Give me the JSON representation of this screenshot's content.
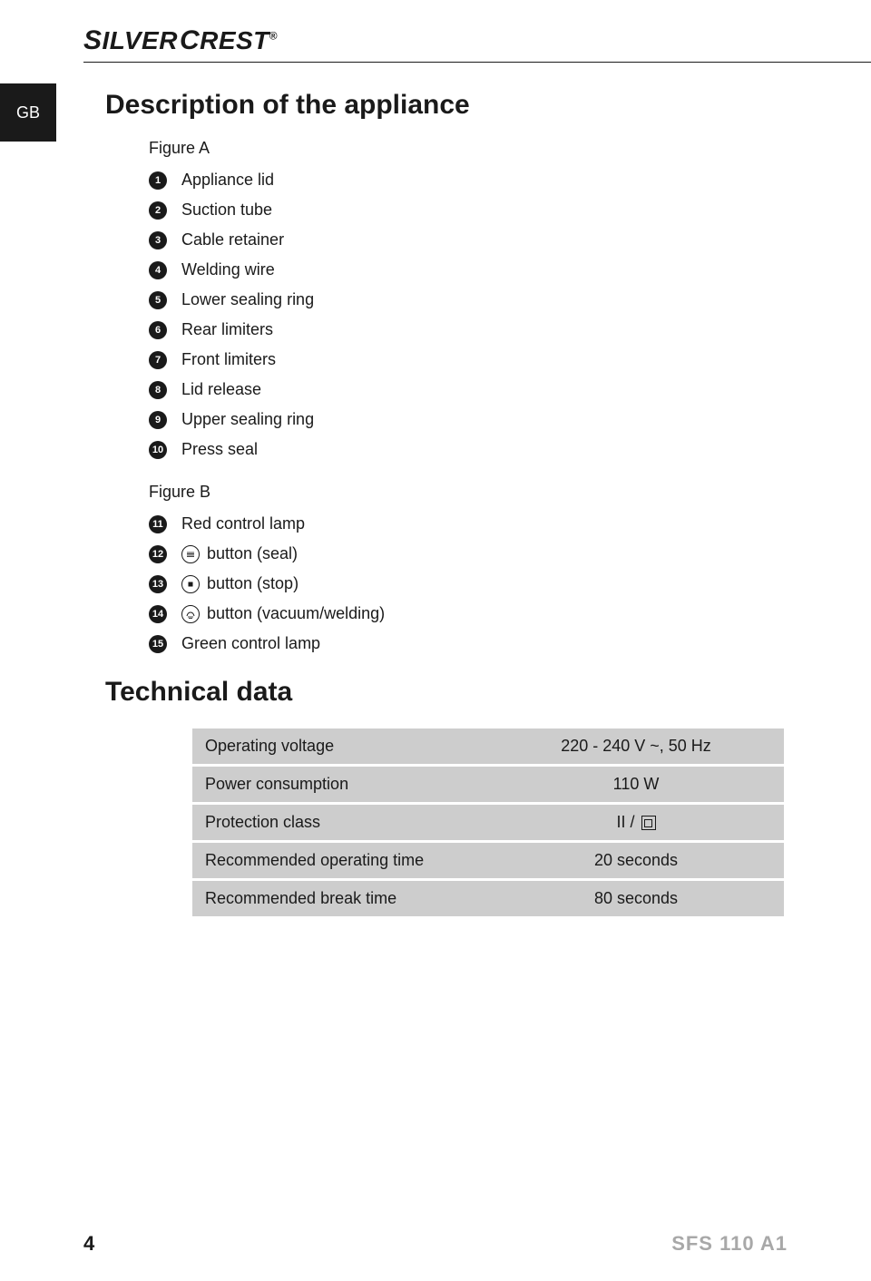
{
  "brand": "SilverCrest",
  "lang_tab": "GB",
  "section1_title": "Description of the appliance",
  "figure_a": {
    "label": "Figure A",
    "items": [
      {
        "n": "1",
        "text": "Appliance lid"
      },
      {
        "n": "2",
        "text": "Suction tube"
      },
      {
        "n": "3",
        "text": "Cable retainer"
      },
      {
        "n": "4",
        "text": "Welding wire"
      },
      {
        "n": "5",
        "text": "Lower sealing ring"
      },
      {
        "n": "6",
        "text": "Rear limiters"
      },
      {
        "n": "7",
        "text": "Front limiters"
      },
      {
        "n": "8",
        "text": "Lid release"
      },
      {
        "n": "9",
        "text": "Upper sealing ring"
      },
      {
        "n": "10",
        "text": "Press seal"
      }
    ]
  },
  "figure_b": {
    "label": "Figure B",
    "items": [
      {
        "n": "11",
        "text": "Red control lamp",
        "icon": null
      },
      {
        "n": "12",
        "text": " button (seal)",
        "icon": "seal"
      },
      {
        "n": "13",
        "text": " button (stop)",
        "icon": "stop"
      },
      {
        "n": "14",
        "text": " button (vacuum/welding)",
        "icon": "vacuum"
      },
      {
        "n": "15",
        "text": "Green control lamp",
        "icon": null
      }
    ]
  },
  "section2_title": "Technical data",
  "tech_table": {
    "rows": [
      {
        "label": "Operating voltage",
        "value": "220 - 240 V ~, 50 Hz"
      },
      {
        "label": "Power consumption",
        "value": "110 W"
      },
      {
        "label": "Protection class",
        "value": "II / ",
        "class2_icon": true
      },
      {
        "label": "Recommended operating time",
        "value": "20 seconds"
      },
      {
        "label": "Recommended break time",
        "value": "80 seconds"
      }
    ],
    "row_bg": "#cdcdcd"
  },
  "footer": {
    "page": "4",
    "model": "SFS 110 A1"
  }
}
